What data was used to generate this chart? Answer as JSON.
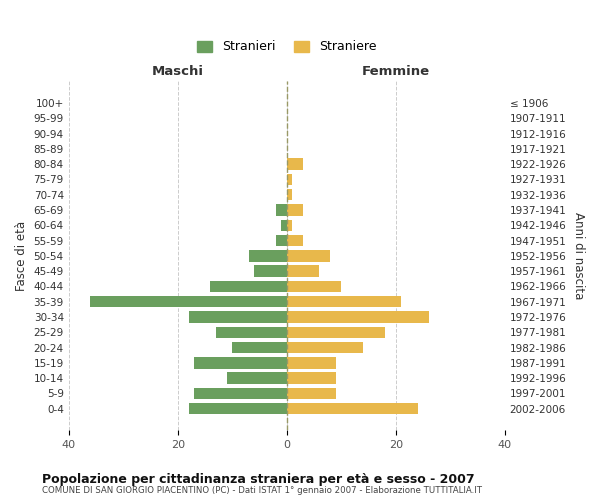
{
  "age_groups": [
    "100+",
    "95-99",
    "90-94",
    "85-89",
    "80-84",
    "75-79",
    "70-74",
    "65-69",
    "60-64",
    "55-59",
    "50-54",
    "45-49",
    "40-44",
    "35-39",
    "30-34",
    "25-29",
    "20-24",
    "15-19",
    "10-14",
    "5-9",
    "0-4"
  ],
  "birth_years": [
    "≤ 1906",
    "1907-1911",
    "1912-1916",
    "1917-1921",
    "1922-1926",
    "1927-1931",
    "1932-1936",
    "1937-1941",
    "1942-1946",
    "1947-1951",
    "1952-1956",
    "1957-1961",
    "1962-1966",
    "1967-1971",
    "1972-1976",
    "1977-1981",
    "1982-1986",
    "1987-1991",
    "1992-1996",
    "1997-2001",
    "2002-2006"
  ],
  "maschi": [
    0,
    0,
    0,
    0,
    0,
    0,
    0,
    2,
    1,
    2,
    7,
    6,
    14,
    36,
    18,
    13,
    10,
    17,
    11,
    17,
    18
  ],
  "femmine": [
    0,
    0,
    0,
    0,
    3,
    1,
    1,
    3,
    1,
    3,
    8,
    6,
    10,
    21,
    26,
    18,
    14,
    9,
    9,
    9,
    24
  ],
  "maschi_color": "#6a9f5e",
  "femmine_color": "#e8b84b",
  "background_color": "#ffffff",
  "grid_color": "#cccccc",
  "center_line_color": "#999966",
  "title": "Popolazione per cittadinanza straniera per età e sesso - 2007",
  "subtitle": "COMUNE DI SAN GIORGIO PIACENTINO (PC) - Dati ISTAT 1° gennaio 2007 - Elaborazione TUTTITALIA.IT",
  "xlabel_left": "Maschi",
  "xlabel_right": "Femmine",
  "ylabel_left": "Fasce di età",
  "ylabel_right": "Anni di nascita",
  "legend_maschi": "Stranieri",
  "legend_femmine": "Straniere",
  "xlim": 40
}
